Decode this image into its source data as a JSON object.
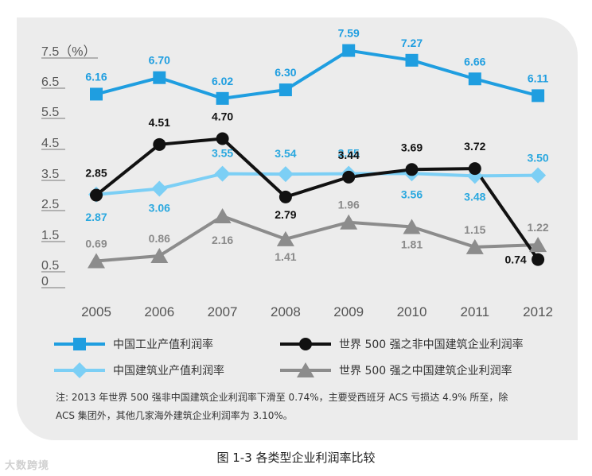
{
  "chart_data": {
    "type": "line",
    "categories": [
      "2005",
      "2006",
      "2007",
      "2008",
      "2009",
      "2010",
      "2011",
      "2012"
    ],
    "y_ticks": [
      "7.5（%）",
      "6.5",
      "5.5",
      "4.5",
      "3.5",
      "2.5",
      "1.5",
      "0.5",
      "0"
    ],
    "series": [
      {
        "name": "中国工业产值利润率",
        "color": "#1f9ee0",
        "marker": "square",
        "values": [
          6.16,
          6.7,
          6.02,
          6.3,
          7.59,
          7.27,
          6.66,
          6.11
        ],
        "labels": [
          "6.16",
          "6.70",
          "6.02",
          "6.30",
          "7.59",
          "7.27",
          "6.66",
          "6.11"
        ]
      },
      {
        "name": "世界 500 强之非中国建筑企业利润率",
        "color": "#111111",
        "marker": "circle",
        "values": [
          2.85,
          4.51,
          4.7,
          2.79,
          3.44,
          3.69,
          3.72,
          0.74
        ],
        "labels": [
          "2.85",
          "4.51",
          "4.70",
          "2.79",
          "3.44",
          "3.69",
          "3.72",
          "0.74"
        ]
      },
      {
        "name": "中国建筑业产值利润率",
        "color": "#7ccff5",
        "marker": "diamond",
        "values": [
          2.87,
          3.06,
          3.55,
          3.54,
          3.55,
          3.56,
          3.48,
          3.5
        ],
        "labels": [
          "2.87",
          "3.06",
          "3.55",
          "3.54",
          "3.55",
          "3.56",
          "3.48",
          "3.50"
        ]
      },
      {
        "name": "世界 500 强之中国建筑企业利润率",
        "color": "#8c8c8c",
        "marker": "triangle",
        "values": [
          0.69,
          0.86,
          2.16,
          1.41,
          1.96,
          1.81,
          1.15,
          1.22
        ],
        "labels": [
          "0.69",
          "0.86",
          "2.16",
          "1.41",
          "1.96",
          "1.81",
          "1.15",
          "1.22"
        ]
      }
    ],
    "label_colors": {
      "中国工业产值利润率": "#1f9ee0",
      "世界 500 强之非中国建筑企业利润率": "#111111",
      "中国建筑业产值利润率": "#2aa8df",
      "世界 500 强之中国建筑企业利润率": "#8a8a8a"
    }
  },
  "note_line1": "注: 2013 年世界 500 强非中国建筑企业利润率下滑至 0.74%，主要受西班牙 ACS 亏损达 4.9% 所至，除",
  "note_line2": "ACS 集团外，其他几家海外建筑企业利润率为 3.10%。",
  "caption": "图 1-3 各类型企业利润率比较",
  "watermark": "大数跨境"
}
